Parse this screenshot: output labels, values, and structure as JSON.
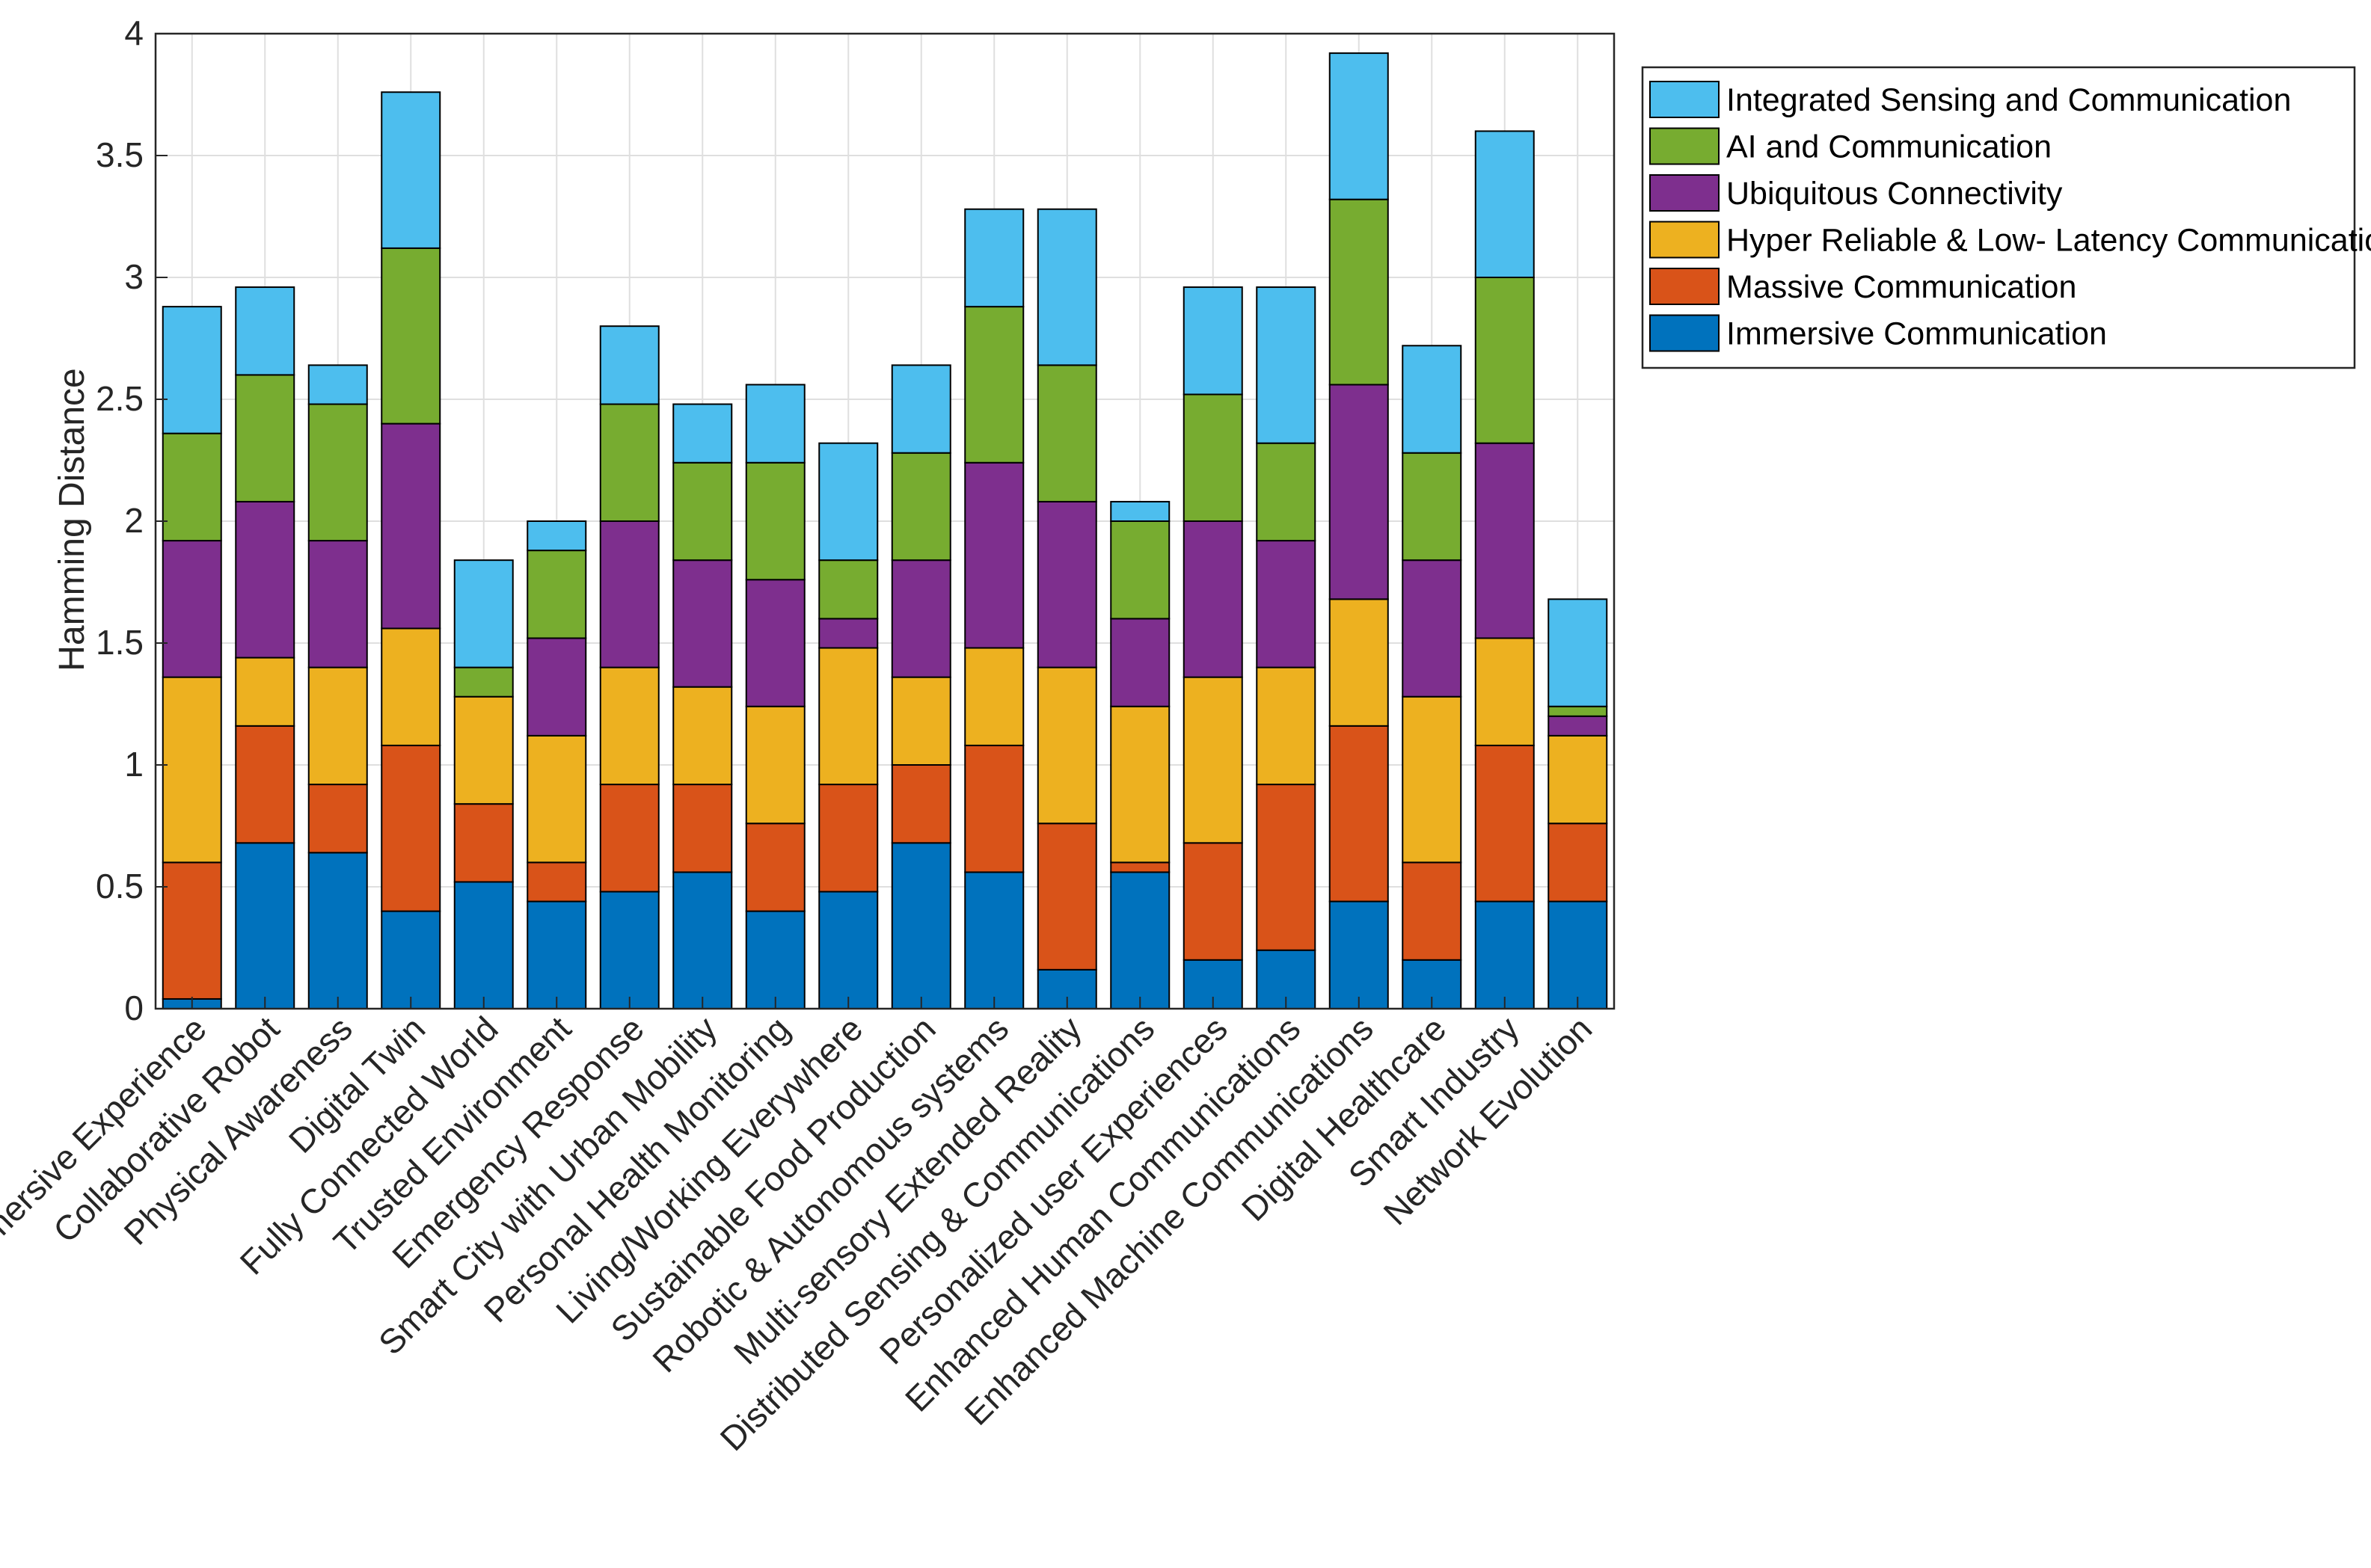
{
  "chart_data": {
    "type": "bar",
    "stacked": true,
    "title": "",
    "xlabel": "",
    "ylabel": "Hamming Distance",
    "ylim": [
      0,
      4
    ],
    "yticks": [
      0,
      0.5,
      1,
      1.5,
      2,
      2.5,
      3,
      3.5,
      4
    ],
    "ytick_labels": [
      "0",
      "0.5",
      "1",
      "1.5",
      "2",
      "2.5",
      "3",
      "3.5",
      "4"
    ],
    "grid": true,
    "legend_position": "top-right, outside plot",
    "categories": [
      "Immersive Experience",
      "Collaborative Robot",
      "Physical Awareness",
      "Digital Twin",
      "Fully Connected World",
      "Trusted Environment",
      "Emergency Response",
      "Smart City with Urban Mobility",
      "Personal Health Monitoring",
      "Living/Working Everywhere",
      "Sustainable Food Production",
      "Robotic & Autonomous systems",
      "Multi-sensory Extended Reality",
      "Distributed Sensing & Communications",
      "Personalized user Experiences",
      "Enhanced Human Communications",
      "Enhanced Machine Communications",
      "Digital Healthcare",
      "Smart Industry",
      "Network Evolution"
    ],
    "series": [
      {
        "name": "Immersive Communication",
        "color": "#0072BD",
        "values": [
          0.04,
          0.68,
          0.64,
          0.4,
          0.52,
          0.44,
          0.48,
          0.56,
          0.4,
          0.48,
          0.68,
          0.56,
          0.16,
          0.56,
          0.2,
          0.24,
          0.44,
          0.2,
          0.44,
          0.44
        ]
      },
      {
        "name": "Massive Communication",
        "color": "#D95319",
        "values": [
          0.56,
          0.48,
          0.28,
          0.68,
          0.32,
          0.16,
          0.44,
          0.36,
          0.36,
          0.44,
          0.32,
          0.52,
          0.6,
          0.04,
          0.48,
          0.68,
          0.72,
          0.4,
          0.64,
          0.32
        ]
      },
      {
        "name": "Hyper Reliable & Low- Latency Communication",
        "color": "#EDB120",
        "values": [
          0.76,
          0.28,
          0.48,
          0.48,
          0.44,
          0.52,
          0.48,
          0.4,
          0.48,
          0.56,
          0.36,
          0.4,
          0.64,
          0.64,
          0.68,
          0.48,
          0.52,
          0.68,
          0.44,
          0.36
        ]
      },
      {
        "name": "Ubiquitous Connectivity",
        "color": "#7E2F8E",
        "values": [
          0.56,
          0.64,
          0.52,
          0.84,
          0.0,
          0.4,
          0.6,
          0.52,
          0.52,
          0.12,
          0.48,
          0.76,
          0.68,
          0.36,
          0.64,
          0.52,
          0.88,
          0.56,
          0.8,
          0.08
        ]
      },
      {
        "name": "AI and Communication",
        "color": "#77AC30",
        "values": [
          0.44,
          0.52,
          0.56,
          0.72,
          0.12,
          0.36,
          0.48,
          0.4,
          0.48,
          0.24,
          0.44,
          0.64,
          0.56,
          0.4,
          0.52,
          0.4,
          0.76,
          0.44,
          0.68,
          0.04
        ]
      },
      {
        "name": "Integrated Sensing and Communication",
        "color": "#4DBEEE",
        "values": [
          0.52,
          0.36,
          0.16,
          0.64,
          0.44,
          0.12,
          0.32,
          0.24,
          0.32,
          0.48,
          0.36,
          0.4,
          0.64,
          0.08,
          0.44,
          0.64,
          0.6,
          0.44,
          0.6,
          0.44
        ]
      }
    ]
  }
}
